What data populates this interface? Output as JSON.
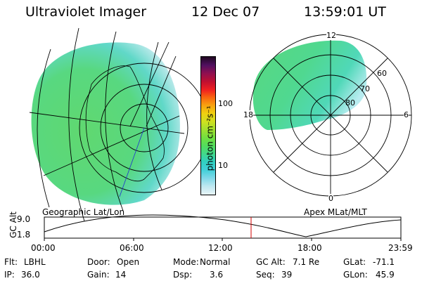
{
  "header": {
    "instrument": "Ultraviolet Imager",
    "date": "12 Dec 07",
    "time": "13:59:01 UT"
  },
  "colorbar": {
    "unit_label": "photon cm⁻²s⁻¹",
    "ticks": [
      "100",
      "10"
    ],
    "colors": [
      "#e8f4f8",
      "#bfe8f0",
      "#7fd8e8",
      "#40d0d8",
      "#30d0c0",
      "#40d890",
      "#50dc60",
      "#70e040",
      "#a0e030",
      "#d0e020",
      "#f0d010",
      "#f8a010",
      "#f86010",
      "#f02020",
      "#c01030",
      "#901050",
      "#501060",
      "#200820"
    ]
  },
  "left_map": {
    "caption": "Geographic Lat/Lon"
  },
  "right_map": {
    "caption": "Apex MLat/MLT",
    "mlt_labels": {
      "top": "12",
      "bottom": "0",
      "left": "18",
      "right": "6"
    },
    "lat_labels": [
      "60",
      "70",
      "80"
    ]
  },
  "altitude_plot": {
    "axis_label": "GC Alt",
    "y_ticks": [
      "9.0",
      "1.8"
    ],
    "x_ticks": [
      "00:00",
      "06:00",
      "12:00",
      "18:00",
      "23:59"
    ],
    "marker_color": "#d00000"
  },
  "status": {
    "row1": [
      {
        "label": "Flt:",
        "value": "LBHL"
      },
      {
        "label": "Door:",
        "value": "Open"
      },
      {
        "label": "Mode:",
        "value": "Normal"
      },
      {
        "label": "GC Alt:",
        "value": "7.1 Re"
      },
      {
        "label": "GLat:",
        "value": "-71.1"
      }
    ],
    "row2": [
      {
        "label": "IP:",
        "value": "36.0"
      },
      {
        "label": "Gain:",
        "value": "14"
      },
      {
        "label": "Dsp:",
        "value": "3.6"
      },
      {
        "label": "Seq:",
        "value": "39"
      },
      {
        "label": "GLon:",
        "value": "45.9"
      }
    ]
  }
}
